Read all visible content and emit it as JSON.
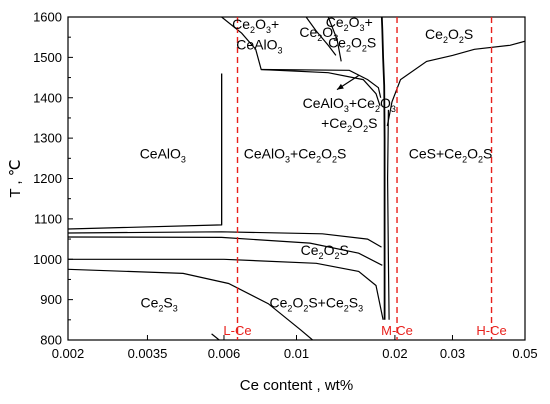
{
  "chart_data": {
    "type": "line",
    "xlabel": "Ce content , wt%",
    "ylabel": "T , ℃",
    "xscale": "log",
    "xlim": [
      0.002,
      0.05
    ],
    "ylim": [
      800,
      1600
    ],
    "x_ticks": [
      {
        "value": 0.002,
        "label": "0.002"
      },
      {
        "value": 0.0035,
        "label": "0.0035"
      },
      {
        "value": 0.006,
        "label": "0.006"
      },
      {
        "value": 0.01,
        "label": "0.01"
      },
      {
        "value": 0.02,
        "label": "0.02"
      },
      {
        "value": 0.03,
        "label": "0.03"
      },
      {
        "value": 0.05,
        "label": "0.05"
      }
    ],
    "y_ticks": [
      {
        "value": 800,
        "label": "800"
      },
      {
        "value": 900,
        "label": "900"
      },
      {
        "value": 1000,
        "label": "1000"
      },
      {
        "value": 1100,
        "label": "1100"
      },
      {
        "value": 1200,
        "label": "1200"
      },
      {
        "value": 1300,
        "label": "1300"
      },
      {
        "value": 1400,
        "label": "1400"
      },
      {
        "value": 1500,
        "label": "1500"
      },
      {
        "value": 1600,
        "label": "1600"
      }
    ],
    "boundaries": [
      {
        "name": "b1",
        "points": [
          [
            0.0059,
            1600
          ],
          [
            0.0068,
            1560
          ],
          [
            0.0075,
            1520
          ],
          [
            0.0078,
            1470
          ],
          [
            0.0125,
            1462
          ],
          [
            0.016,
            1445
          ],
          [
            0.0175,
            1410
          ],
          [
            0.018,
            1380
          ]
        ]
      },
      {
        "name": "b2",
        "points": [
          [
            0.0107,
            1600
          ],
          [
            0.0115,
            1565
          ],
          [
            0.0125,
            1530
          ],
          [
            0.0132,
            1505
          ]
        ]
      },
      {
        "name": "b3",
        "points": [
          [
            0.0125,
            1600
          ],
          [
            0.0133,
            1545
          ],
          [
            0.0137,
            1490
          ]
        ]
      },
      {
        "name": "b4",
        "points": [
          [
            0.0078,
            1470
          ],
          [
            0.0145,
            1468
          ],
          [
            0.0165,
            1445
          ],
          [
            0.0178,
            1425
          ],
          [
            0.0181,
            1400
          ]
        ]
      },
      {
        "name": "b5",
        "points": [
          [
            0.0182,
            1620
          ],
          [
            0.0183,
            1570
          ],
          [
            0.0184,
            1500
          ],
          [
            0.01855,
            1430
          ],
          [
            0.0186,
            1300
          ],
          [
            0.0186,
            850
          ]
        ]
      },
      {
        "name": "b6",
        "points": [
          [
            0.01895,
            1330
          ],
          [
            0.0196,
            1390
          ],
          [
            0.0208,
            1445
          ],
          [
            0.025,
            1490
          ],
          [
            0.03,
            1505
          ],
          [
            0.035,
            1520
          ],
          [
            0.045,
            1530
          ],
          [
            0.05,
            1540
          ]
        ]
      },
      {
        "name": "b7",
        "points": [
          [
            0.0192,
            850
          ],
          [
            0.0191,
            1000
          ],
          [
            0.019,
            1200
          ],
          [
            0.0191,
            1370
          ]
        ]
      },
      {
        "name": "b8",
        "points": [
          [
            0.0059,
            1460
          ],
          [
            0.0059,
            1085
          ],
          [
            0.002,
            1075
          ]
        ]
      },
      {
        "name": "b9",
        "points": [
          [
            0.0059,
            1085
          ],
          [
            0.0059,
            1460
          ]
        ]
      },
      {
        "name": "b10",
        "points": [
          [
            0.002,
            1065
          ],
          [
            0.0059,
            1068
          ],
          [
            0.012,
            1063
          ],
          [
            0.0165,
            1050
          ],
          [
            0.0182,
            1030
          ]
        ]
      },
      {
        "name": "b11",
        "points": [
          [
            0.002,
            1055
          ],
          [
            0.0059,
            1054
          ],
          [
            0.011,
            1040
          ],
          [
            0.0155,
            1015
          ],
          [
            0.0183,
            985
          ]
        ]
      },
      {
        "name": "b12",
        "points": [
          [
            0.002,
            1000
          ],
          [
            0.006,
            1000
          ],
          [
            0.0115,
            990
          ],
          [
            0.0155,
            970
          ],
          [
            0.0175,
            935
          ],
          [
            0.0184,
            850
          ]
        ]
      },
      {
        "name": "b13",
        "points": [
          [
            0.002,
            975
          ],
          [
            0.0045,
            965
          ],
          [
            0.0062,
            940
          ],
          [
            0.0082,
            890
          ],
          [
            0.0103,
            825
          ],
          [
            0.0112,
            800
          ]
        ]
      },
      {
        "name": "b14",
        "points": [
          [
            0.0055,
            815
          ],
          [
            0.0058,
            800
          ]
        ]
      }
    ],
    "markers": [
      {
        "label": "L-Ce",
        "x": 0.0066
      },
      {
        "label": "M-Ce",
        "x": 0.0203
      },
      {
        "label": "H-Ce",
        "x": 0.0395
      }
    ],
    "regions": [
      {
        "parts": [
          [
            "Ce",
            ""
          ],
          [
            "2",
            "sub"
          ],
          [
            "O",
            ""
          ],
          [
            "3",
            "sub"
          ],
          [
            "+",
            ""
          ]
        ],
        "x": 0.0075,
        "y": 1570
      },
      {
        "parts": [
          [
            "CeAlO",
            ""
          ],
          [
            "3",
            "sub"
          ]
        ],
        "x": 0.0077,
        "y": 1520
      },
      {
        "parts": [
          [
            "Ce",
            ""
          ],
          [
            "2",
            "sub"
          ],
          [
            "O",
            ""
          ],
          [
            "3",
            "sub"
          ]
        ],
        "x": 0.0117,
        "y": 1550
      },
      {
        "parts": [
          [
            "Ce",
            ""
          ],
          [
            "2",
            "sub"
          ],
          [
            "O",
            ""
          ],
          [
            "3",
            "sub"
          ],
          [
            "+",
            ""
          ]
        ],
        "x": 0.0145,
        "y": 1575
      },
      {
        "parts": [
          [
            "Ce",
            ""
          ],
          [
            "2",
            "sub"
          ],
          [
            "O",
            ""
          ],
          [
            "2",
            "sub"
          ],
          [
            "S",
            ""
          ]
        ],
        "x": 0.0148,
        "y": 1525
      },
      {
        "parts": [
          [
            "Ce",
            ""
          ],
          [
            "2",
            "sub"
          ],
          [
            "O",
            ""
          ],
          [
            "2",
            "sub"
          ],
          [
            "S",
            ""
          ]
        ],
        "x": 0.0293,
        "y": 1545
      },
      {
        "parts": [
          [
            "CeAlO",
            ""
          ],
          [
            "3",
            "sub"
          ],
          [
            "+Ce",
            ""
          ],
          [
            "2",
            "sub"
          ],
          [
            "O",
            ""
          ],
          [
            "3",
            "sub"
          ]
        ],
        "x": 0.0145,
        "y": 1375
      },
      {
        "parts": [
          [
            "+Ce",
            ""
          ],
          [
            "2",
            "sub"
          ],
          [
            "O",
            ""
          ],
          [
            "2",
            "sub"
          ],
          [
            "S",
            ""
          ]
        ],
        "x": 0.0145,
        "y": 1325
      },
      {
        "parts": [
          [
            "CeAlO",
            ""
          ],
          [
            "3",
            "sub"
          ]
        ],
        "x": 0.0039,
        "y": 1250
      },
      {
        "parts": [
          [
            "CeAlO",
            ""
          ],
          [
            "3",
            "sub"
          ],
          [
            "+Ce",
            ""
          ],
          [
            "2",
            "sub"
          ],
          [
            "O",
            ""
          ],
          [
            "2",
            "sub"
          ],
          [
            "S",
            ""
          ]
        ],
        "x": 0.0099,
        "y": 1250
      },
      {
        "parts": [
          [
            "CeS+Ce",
            ""
          ],
          [
            "2",
            "sub"
          ],
          [
            "O",
            ""
          ],
          [
            "2",
            "sub"
          ],
          [
            "S",
            ""
          ]
        ],
        "x": 0.0296,
        "y": 1250
      },
      {
        "parts": [
          [
            "Ce",
            ""
          ],
          [
            "2",
            "sub"
          ],
          [
            "O",
            ""
          ],
          [
            "2",
            "sub"
          ],
          [
            "S",
            ""
          ]
        ],
        "x": 0.0122,
        "y": 1010
      },
      {
        "parts": [
          [
            "Ce",
            ""
          ],
          [
            "2",
            "sub"
          ],
          [
            "S",
            ""
          ],
          [
            "3",
            "sub"
          ]
        ],
        "x": 0.0038,
        "y": 880
      },
      {
        "parts": [
          [
            "Ce",
            ""
          ],
          [
            "2",
            "sub"
          ],
          [
            "O",
            ""
          ],
          [
            "2",
            "sub"
          ],
          [
            "S+Ce",
            ""
          ],
          [
            "2",
            "sub"
          ],
          [
            "S",
            ""
          ],
          [
            "3",
            "sub"
          ]
        ],
        "x": 0.0115,
        "y": 880
      }
    ],
    "annotation_arrow": {
      "from": [
        0.0155,
        1455
      ],
      "to": [
        0.0133,
        1420
      ]
    },
    "grid": false,
    "line_color": "#000000",
    "marker_color": "#e8201c"
  }
}
